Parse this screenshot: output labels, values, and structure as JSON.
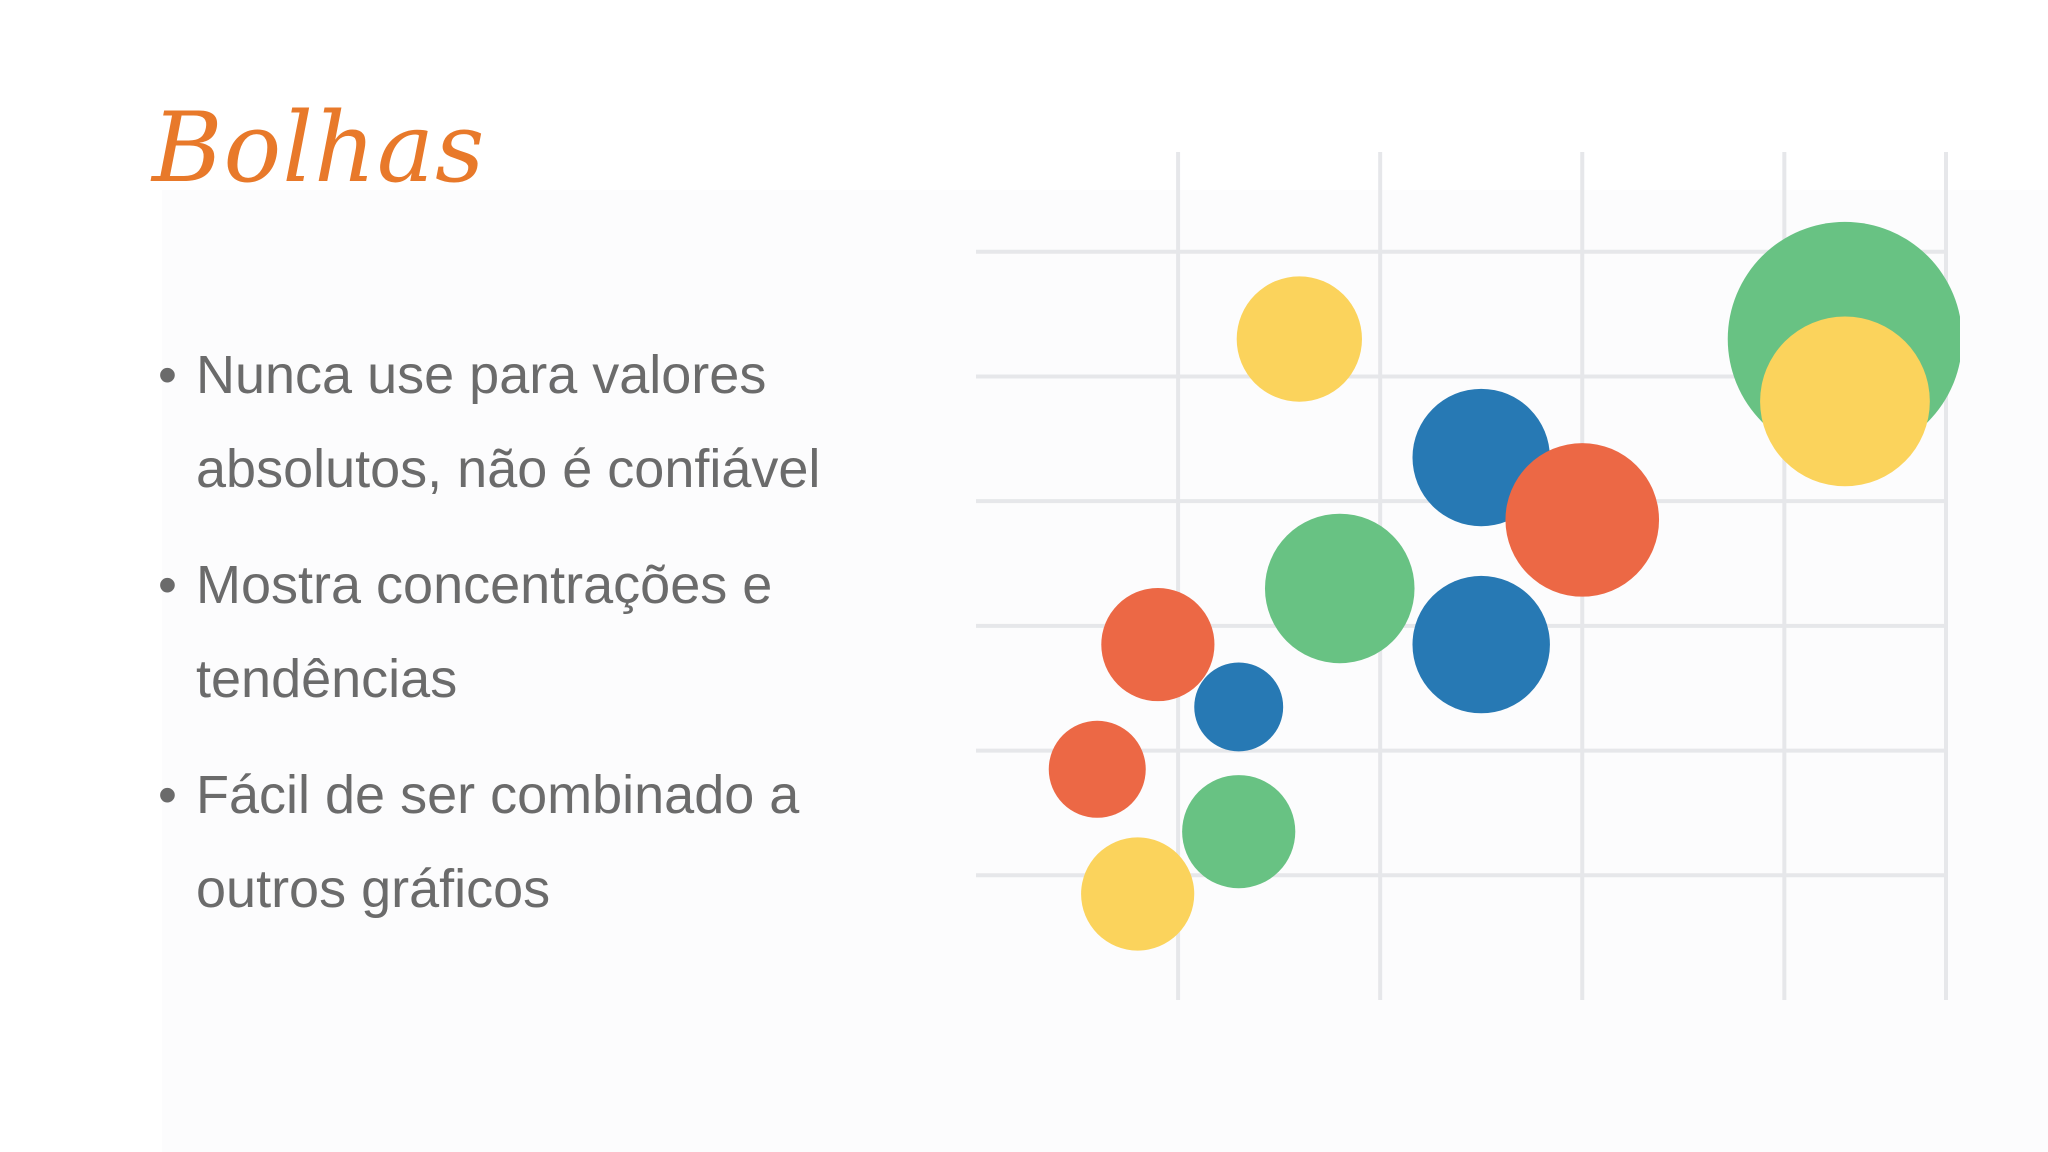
{
  "slide": {
    "title": "Bolhas",
    "bullets": [
      {
        "text": "Nunca use para valores absolutos, não é confiável"
      },
      {
        "text": "Mostra concentrações e tendências"
      },
      {
        "text": "Fácil de ser combinado a outros gráficos"
      }
    ],
    "bullet_symbol": "•"
  },
  "colors": {
    "title": "#e8792a",
    "text": "#6b6b6b",
    "grid": "#e6e7ea",
    "red": "#ec6845",
    "yellow": "#fbd35c",
    "green": "#68c283",
    "blue": "#2779b4"
  },
  "chart_data": {
    "type": "bubble",
    "grid": true,
    "xlim": [
      0,
      4.8
    ],
    "ylim": [
      0,
      6.8
    ],
    "bubbles": [
      {
        "x": 4.3,
        "y": 5.3,
        "size": 0.58,
        "color": "green"
      },
      {
        "x": 4.3,
        "y": 4.8,
        "size": 0.42,
        "color": "yellow"
      },
      {
        "x": 1.6,
        "y": 5.3,
        "size": 0.31,
        "color": "yellow"
      },
      {
        "x": 2.5,
        "y": 4.35,
        "size": 0.34,
        "color": "blue"
      },
      {
        "x": 3.0,
        "y": 3.85,
        "size": 0.38,
        "color": "red"
      },
      {
        "x": 1.8,
        "y": 3.3,
        "size": 0.37,
        "color": "green"
      },
      {
        "x": 2.5,
        "y": 2.85,
        "size": 0.34,
        "color": "blue"
      },
      {
        "x": 0.9,
        "y": 2.85,
        "size": 0.28,
        "color": "red"
      },
      {
        "x": 1.3,
        "y": 2.35,
        "size": 0.22,
        "color": "blue"
      },
      {
        "x": 0.6,
        "y": 1.85,
        "size": 0.24,
        "color": "red"
      },
      {
        "x": 1.3,
        "y": 1.35,
        "size": 0.28,
        "color": "green"
      },
      {
        "x": 0.8,
        "y": 0.85,
        "size": 0.28,
        "color": "yellow"
      }
    ]
  }
}
